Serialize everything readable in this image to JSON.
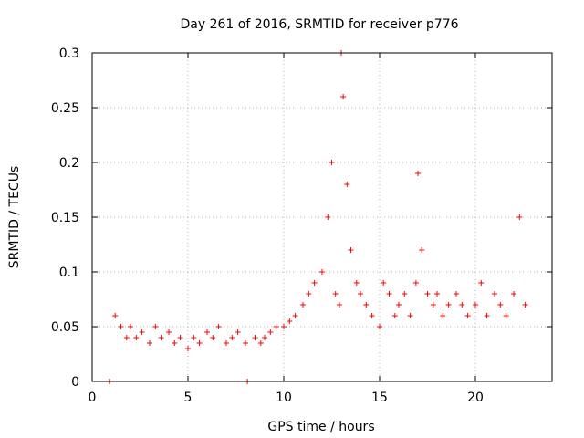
{
  "chart_data": {
    "type": "scatter",
    "title": "Day 261 of 2016, SRMTID for receiver p776",
    "xlabel": "GPS time / hours",
    "ylabel": "SRMTID / TECUs",
    "xlim": [
      0,
      24
    ],
    "ylim": [
      0,
      0.3
    ],
    "xticks": [
      0,
      5,
      10,
      15,
      20
    ],
    "xtick_labels": [
      "0",
      "5",
      "10",
      "15",
      "20"
    ],
    "yticks": [
      0,
      0.05,
      0.1,
      0.15,
      0.2,
      0.25,
      0.3
    ],
    "ytick_labels": [
      "0",
      "0.05",
      "0.1",
      "0.15",
      "0.2",
      "0.25",
      "0.3"
    ],
    "grid": true,
    "marker": "+",
    "color": "#ff0000",
    "series": [
      {
        "name": "SRMTID",
        "x": [
          0.9,
          8.1,
          1.2,
          1.5,
          1.8,
          2.0,
          2.3,
          2.6,
          3.0,
          3.3,
          3.6,
          4.0,
          4.3,
          4.6,
          5.0,
          5.3,
          5.6,
          6.0,
          6.3,
          6.6,
          7.0,
          7.3,
          7.6,
          8.0,
          8.5,
          8.8,
          9.0,
          9.3,
          9.6,
          10.0,
          10.3,
          10.6,
          11.0,
          11.3,
          11.6,
          12.0,
          12.3,
          12.5,
          12.7,
          12.9,
          13.0,
          13.1,
          13.3,
          13.5,
          13.8,
          14.0,
          14.3,
          14.6,
          15.0,
          15.2,
          15.5,
          15.8,
          16.0,
          16.3,
          16.6,
          16.9,
          17.0,
          17.2,
          17.5,
          17.8,
          18.0,
          18.3,
          18.6,
          19.0,
          19.3,
          19.6,
          20.0,
          20.3,
          20.6,
          21.0,
          21.3,
          21.6,
          22.0,
          22.3,
          22.6
        ],
        "y": [
          0.0,
          0.0,
          0.06,
          0.05,
          0.04,
          0.05,
          0.04,
          0.045,
          0.035,
          0.05,
          0.04,
          0.045,
          0.035,
          0.04,
          0.03,
          0.04,
          0.035,
          0.045,
          0.04,
          0.05,
          0.035,
          0.04,
          0.045,
          0.035,
          0.04,
          0.035,
          0.04,
          0.045,
          0.05,
          0.05,
          0.055,
          0.06,
          0.07,
          0.08,
          0.09,
          0.1,
          0.15,
          0.2,
          0.08,
          0.07,
          0.3,
          0.26,
          0.18,
          0.12,
          0.09,
          0.08,
          0.07,
          0.06,
          0.05,
          0.09,
          0.08,
          0.06,
          0.07,
          0.08,
          0.06,
          0.09,
          0.19,
          0.12,
          0.08,
          0.07,
          0.08,
          0.06,
          0.07,
          0.08,
          0.07,
          0.06,
          0.07,
          0.09,
          0.06,
          0.08,
          0.07,
          0.06,
          0.08,
          0.15,
          0.07
        ]
      }
    ]
  }
}
